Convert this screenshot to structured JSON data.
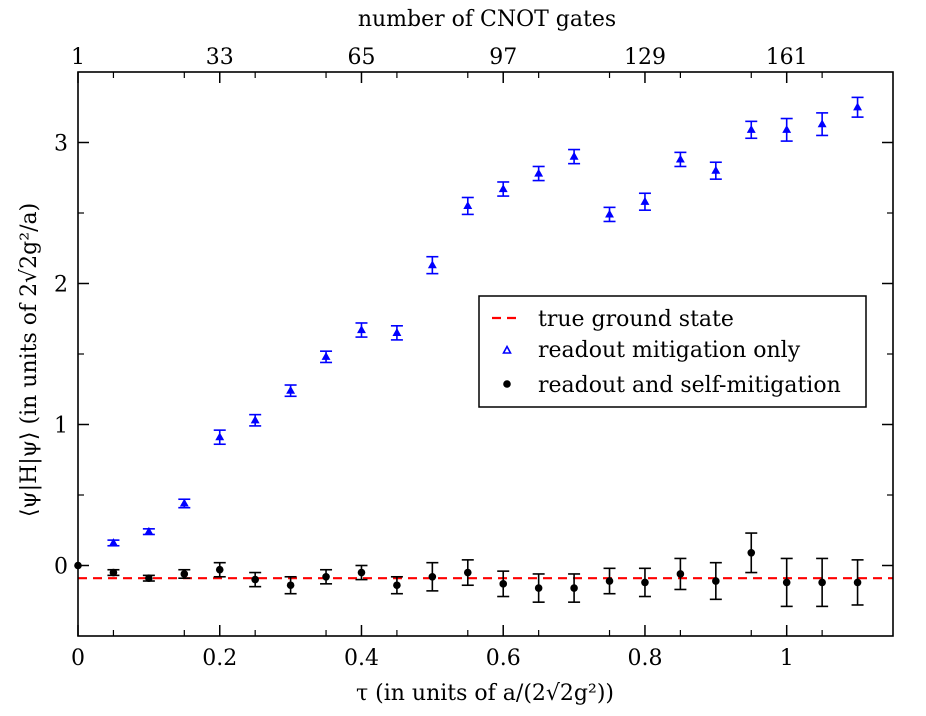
{
  "chart_data": {
    "type": "scatter",
    "top_axis_title": "number of CNOT gates",
    "x_axis_title": "τ   (in units of a/(2√2g²))",
    "y_axis_title": "⟨ψ|H|ψ⟩   (in units of 2√2g²/a)",
    "xlim": [
      0,
      1.15
    ],
    "ylim": [
      -0.5,
      3.5
    ],
    "x_ticks": [
      0,
      0.2,
      0.4,
      0.6,
      0.8,
      1
    ],
    "x_tick_labels": [
      "0",
      "0.2",
      "0.4",
      "0.6",
      "0.8",
      "1"
    ],
    "y_ticks": [
      0,
      1,
      2,
      3
    ],
    "y_tick_labels": [
      "0",
      "1",
      "2",
      "3"
    ],
    "top_ticks": [
      0,
      0.2,
      0.4,
      0.6,
      0.8,
      1
    ],
    "top_tick_labels": [
      "1",
      "33",
      "65",
      "97",
      "129",
      "161"
    ],
    "legend": {
      "position": "right-middle",
      "entries": [
        "true ground state",
        "readout mitigation only",
        "readout and self-mitigation"
      ]
    },
    "ground_state": {
      "name": "true ground state",
      "y": -0.09,
      "color": "#ff0000"
    },
    "series": [
      {
        "name": "readout mitigation only",
        "marker": "triangle",
        "color": "#0000ff",
        "points": [
          {
            "x": 0.05,
            "y": 0.16,
            "err": 0.02
          },
          {
            "x": 0.1,
            "y": 0.24,
            "err": 0.02
          },
          {
            "x": 0.15,
            "y": 0.44,
            "err": 0.03
          },
          {
            "x": 0.2,
            "y": 0.91,
            "err": 0.05
          },
          {
            "x": 0.25,
            "y": 1.03,
            "err": 0.04
          },
          {
            "x": 0.3,
            "y": 1.24,
            "err": 0.04
          },
          {
            "x": 0.35,
            "y": 1.48,
            "err": 0.04
          },
          {
            "x": 0.4,
            "y": 1.67,
            "err": 0.05
          },
          {
            "x": 0.45,
            "y": 1.65,
            "err": 0.05
          },
          {
            "x": 0.5,
            "y": 2.13,
            "err": 0.06
          },
          {
            "x": 0.55,
            "y": 2.55,
            "err": 0.06
          },
          {
            "x": 0.6,
            "y": 2.67,
            "err": 0.05
          },
          {
            "x": 0.65,
            "y": 2.78,
            "err": 0.05
          },
          {
            "x": 0.7,
            "y": 2.9,
            "err": 0.05
          },
          {
            "x": 0.75,
            "y": 2.49,
            "err": 0.05
          },
          {
            "x": 0.8,
            "y": 2.58,
            "err": 0.06
          },
          {
            "x": 0.85,
            "y": 2.88,
            "err": 0.05
          },
          {
            "x": 0.9,
            "y": 2.8,
            "err": 0.06
          },
          {
            "x": 0.95,
            "y": 3.09,
            "err": 0.06
          },
          {
            "x": 1.0,
            "y": 3.09,
            "err": 0.08
          },
          {
            "x": 1.05,
            "y": 3.13,
            "err": 0.08
          },
          {
            "x": 1.1,
            "y": 3.25,
            "err": 0.07
          }
        ]
      },
      {
        "name": "readout and self-mitigation",
        "marker": "circle",
        "color": "#000000",
        "points": [
          {
            "x": 0.0,
            "y": 0.0,
            "err": 0.0
          },
          {
            "x": 0.05,
            "y": -0.05,
            "err": 0.02
          },
          {
            "x": 0.1,
            "y": -0.09,
            "err": 0.02
          },
          {
            "x": 0.15,
            "y": -0.06,
            "err": 0.03
          },
          {
            "x": 0.2,
            "y": -0.03,
            "err": 0.05
          },
          {
            "x": 0.25,
            "y": -0.1,
            "err": 0.05
          },
          {
            "x": 0.3,
            "y": -0.14,
            "err": 0.06
          },
          {
            "x": 0.35,
            "y": -0.08,
            "err": 0.05
          },
          {
            "x": 0.4,
            "y": -0.05,
            "err": 0.05
          },
          {
            "x": 0.45,
            "y": -0.14,
            "err": 0.06
          },
          {
            "x": 0.5,
            "y": -0.08,
            "err": 0.1
          },
          {
            "x": 0.55,
            "y": -0.05,
            "err": 0.09
          },
          {
            "x": 0.6,
            "y": -0.13,
            "err": 0.09
          },
          {
            "x": 0.65,
            "y": -0.16,
            "err": 0.1
          },
          {
            "x": 0.7,
            "y": -0.16,
            "err": 0.1
          },
          {
            "x": 0.75,
            "y": -0.11,
            "err": 0.09
          },
          {
            "x": 0.8,
            "y": -0.12,
            "err": 0.1
          },
          {
            "x": 0.85,
            "y": -0.06,
            "err": 0.11
          },
          {
            "x": 0.9,
            "y": -0.11,
            "err": 0.13
          },
          {
            "x": 0.95,
            "y": 0.09,
            "err": 0.14
          },
          {
            "x": 1.0,
            "y": -0.12,
            "err": 0.17
          },
          {
            "x": 1.05,
            "y": -0.12,
            "err": 0.17
          },
          {
            "x": 1.1,
            "y": -0.12,
            "err": 0.16
          }
        ]
      }
    ]
  }
}
